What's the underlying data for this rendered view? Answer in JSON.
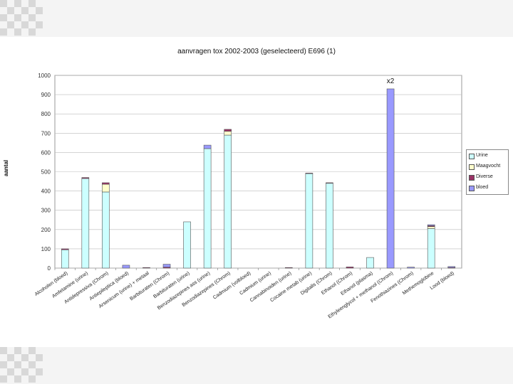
{
  "slide": {
    "title": "aanvragen tox 2002-2003 (geselecteerd) E696 (1)",
    "ylabel": "aantal"
  },
  "chart_data": {
    "type": "bar",
    "stacked": true,
    "title": "aanvragen tox 2002-2003 (geselecteerd) E696 (1)",
    "xlabel": "",
    "ylabel": "aantal",
    "ylim": [
      0,
      1000
    ],
    "yticks": [
      0,
      100,
      200,
      300,
      400,
      500,
      600,
      700,
      800,
      900,
      1000
    ],
    "legend_position": "right",
    "categories": [
      "Alcoholen (bloed)",
      "Amfetamine (urine)",
      "Antidepressiva (Chrom)",
      "Antiepileptica (bloed)",
      "Arsenicum (urine) + metaal",
      "Barbituraten (Chrom)",
      "Barbituraten (urine)",
      "Benzodiazepines ass (urine)",
      "Benzodiazepines (Chrom)",
      "Cadmium (volbloed)",
      "Cadmium (urine)",
      "Cannabinoiden (urine)",
      "Cocaine metab (urine)",
      "Digitalis (Chrom)",
      "Ethanol (Chrom)",
      "Ethanol (plasma)",
      "Ethyleenglycol + methanol (Chrom)",
      "Fenothiazines (Chrom)",
      "Methemoglobine",
      "Lood (bloed)"
    ],
    "series": [
      {
        "name": "Urine",
        "color": "#ccffff",
        "values": [
          95,
          465,
          395,
          0,
          0,
          0,
          240,
          620,
          690,
          0,
          0,
          0,
          490,
          440,
          0,
          55,
          0,
          0,
          205,
          0
        ]
      },
      {
        "name": "Maagvocht",
        "color": "#ffffcc",
        "values": [
          0,
          0,
          40,
          0,
          0,
          0,
          0,
          0,
          20,
          0,
          0,
          0,
          0,
          0,
          0,
          0,
          0,
          0,
          10,
          0
        ]
      },
      {
        "name": "Diverse",
        "color": "#993366",
        "values": [
          5,
          5,
          8,
          0,
          3,
          5,
          0,
          0,
          10,
          0,
          0,
          3,
          3,
          3,
          6,
          0,
          0,
          0,
          5,
          3
        ]
      },
      {
        "name": "bloed",
        "color": "#9999ff",
        "values": [
          0,
          0,
          0,
          15,
          0,
          15,
          0,
          18,
          0,
          0,
          0,
          0,
          0,
          0,
          0,
          0,
          930,
          5,
          5,
          5
        ]
      }
    ],
    "annotations": [
      {
        "category": "Ethyleenglycol + methanol (Chrom)",
        "text": "x2"
      }
    ]
  }
}
